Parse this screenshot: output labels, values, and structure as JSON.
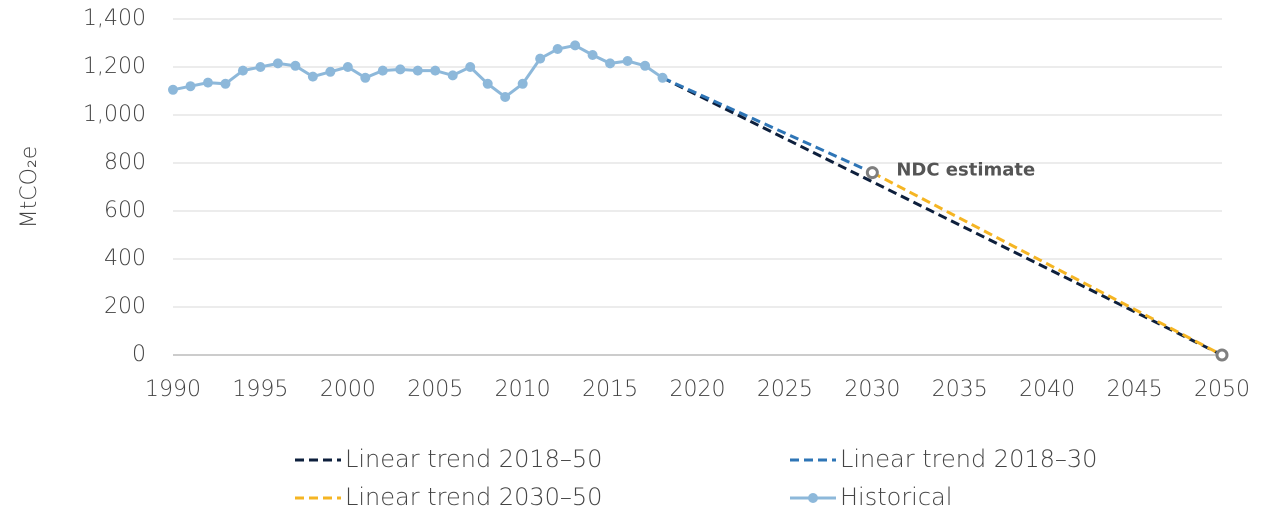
{
  "chart_data": {
    "type": "line",
    "y_label": "MtCO₂e",
    "ylim": [
      0,
      1400
    ],
    "yticks": [
      0,
      200,
      400,
      600,
      800,
      {
        "value": 1000,
        "label": "1,000"
      },
      {
        "value": 1200,
        "label": "1,200"
      },
      {
        "value": 1400,
        "label": "1,400"
      }
    ],
    "xlim": [
      1990,
      2050
    ],
    "xticks": [
      1990,
      1995,
      2000,
      2005,
      2010,
      2015,
      2020,
      2025,
      2030,
      2035,
      2040,
      2045,
      2050
    ],
    "grid": true,
    "series": [
      {
        "name": "Linear trend 2018–50",
        "color": "#0d1f3c",
        "dashed": true,
        "x": [
          2018,
          2050
        ],
        "values": [
          1155,
          0
        ]
      },
      {
        "name": "Linear trend 2018–30",
        "color": "#2e75b6",
        "dashed": true,
        "x": [
          2018,
          2030
        ],
        "values": [
          1155,
          760
        ]
      },
      {
        "name": "Linear trend 2030–50",
        "color": "#f5b523",
        "dashed": true,
        "x": [
          2030,
          2050
        ],
        "values": [
          760,
          0
        ]
      },
      {
        "name": "Historical",
        "color": "#8db8da",
        "markers": true,
        "x": [
          1990,
          1991,
          1992,
          1993,
          1994,
          1995,
          1996,
          1997,
          1998,
          1999,
          2000,
          2001,
          2002,
          2003,
          2004,
          2005,
          2006,
          2007,
          2008,
          2009,
          2010,
          2011,
          2012,
          2013,
          2014,
          2015,
          2016,
          2017,
          2018
        ],
        "values": [
          1105,
          1120,
          1135,
          1130,
          1185,
          1200,
          1215,
          1205,
          1160,
          1180,
          1200,
          1155,
          1185,
          1190,
          1185,
          1185,
          1165,
          1200,
          1130,
          1075,
          1130,
          1235,
          1275,
          1290,
          1250,
          1215,
          1225,
          1205,
          1155
        ]
      }
    ],
    "targets": {
      "color": "#7f7f7f",
      "x": [
        2030,
        2050
      ],
      "values": [
        760,
        0
      ]
    },
    "annotations": [
      {
        "text": "NDC estimate",
        "x": 2030,
        "y": 760
      }
    ]
  }
}
